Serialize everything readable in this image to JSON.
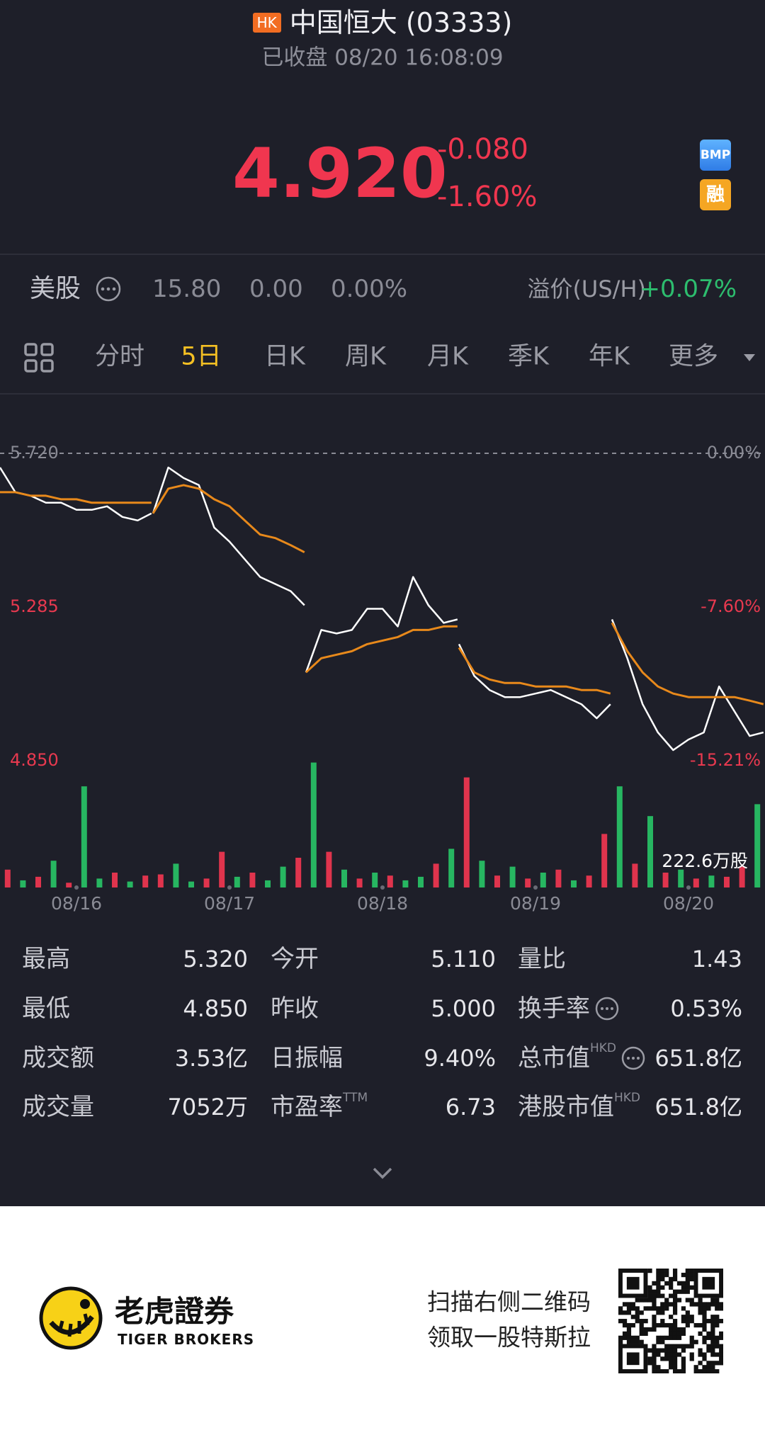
{
  "header": {
    "market_badge": "HK",
    "title": "中国恒大 (03333)",
    "status": "已收盘 08/20 16:08:09"
  },
  "quote": {
    "price": "4.920",
    "change": "-0.080",
    "change_pct": "-1.60%",
    "badges": [
      "BMP",
      "融"
    ]
  },
  "us_row": {
    "label": "美股",
    "price": "15.80",
    "change": "0.00",
    "change_pct": "0.00%",
    "premium_label": "溢价(US/H)",
    "premium": "+0.07%"
  },
  "tabs": {
    "items": [
      "分时",
      "5日",
      "日K",
      "周K",
      "月K",
      "季K",
      "年K",
      "更多"
    ],
    "active": 1
  },
  "chart_data": {
    "type": "line",
    "x": [
      0,
      0.1,
      0.2,
      0.3,
      0.4,
      0.5,
      0.6,
      0.7,
      0.8,
      0.9,
      0.99,
      0.995,
      1,
      1.1,
      1.2,
      1.3,
      1.4,
      1.5,
      1.6,
      1.7,
      1.8,
      1.9,
      1.99,
      1.995,
      2,
      2.1,
      2.2,
      2.3,
      2.4,
      2.5,
      2.6,
      2.7,
      2.8,
      2.9,
      2.99,
      2.995,
      3,
      3.1,
      3.2,
      3.3,
      3.4,
      3.5,
      3.6,
      3.7,
      3.8,
      3.9,
      3.99,
      3.995,
      4,
      4.1,
      4.2,
      4.3,
      4.4,
      4.5,
      4.6,
      4.7,
      4.8,
      4.9,
      4.99
    ],
    "series": [
      {
        "color": "#ffffff",
        "values": [
          5.68,
          5.61,
          5.6,
          5.58,
          5.58,
          5.56,
          5.56,
          5.57,
          5.54,
          5.53,
          5.55,
          null,
          5.55,
          5.68,
          5.65,
          5.63,
          5.51,
          5.47,
          5.42,
          5.37,
          5.35,
          5.33,
          5.29,
          null,
          5.1,
          5.22,
          5.21,
          5.22,
          5.28,
          5.28,
          5.23,
          5.37,
          5.29,
          5.24,
          5.25,
          null,
          5.18,
          5.09,
          5.05,
          5.03,
          5.03,
          5.04,
          5.05,
          5.03,
          5.01,
          4.97,
          5.01,
          null,
          5.25,
          5.14,
          5.01,
          4.93,
          4.88,
          4.91,
          4.93,
          5.06,
          4.99,
          4.92,
          4.93
        ]
      },
      {
        "color": "#e8891b",
        "values": [
          5.61,
          5.61,
          5.6,
          5.6,
          5.59,
          5.59,
          5.58,
          5.58,
          5.58,
          5.58,
          5.58,
          null,
          5.55,
          5.62,
          5.63,
          5.62,
          5.59,
          5.57,
          5.53,
          5.49,
          5.48,
          5.46,
          5.44,
          null,
          5.1,
          5.14,
          5.15,
          5.16,
          5.18,
          5.19,
          5.2,
          5.22,
          5.22,
          5.23,
          5.23,
          null,
          5.17,
          5.1,
          5.08,
          5.07,
          5.07,
          5.06,
          5.06,
          5.06,
          5.05,
          5.05,
          5.04,
          null,
          5.24,
          5.16,
          5.1,
          5.06,
          5.04,
          5.03,
          5.03,
          5.03,
          5.03,
          5.02,
          5.01
        ]
      }
    ],
    "ylim": [
      4.85,
      5.72
    ],
    "yticks": [
      {
        "value": 5.72,
        "label": "5.720"
      },
      {
        "value": 5.285,
        "label": "5.285"
      },
      {
        "value": 4.85,
        "label": "4.850"
      }
    ],
    "y2lim": [
      -15.21,
      0
    ],
    "y2ticks": [
      {
        "value": 0,
        "label": "0.00%"
      },
      {
        "value": -7.6,
        "label": "-7.60%"
      },
      {
        "value": -15.21,
        "label": "-15.21%"
      }
    ],
    "categories": [
      "08/16",
      "08/17",
      "08/18",
      "08/19",
      "08/20"
    ],
    "volume_max": {
      "value": 222.6,
      "label": "222.6万股"
    },
    "volume": {
      "values": [
        30,
        12,
        18,
        45,
        8,
        170,
        15,
        25,
        10,
        20,
        22,
        40,
        10,
        15,
        60,
        18,
        25,
        12,
        35,
        50,
        210,
        60,
        30,
        15,
        25,
        20,
        12,
        18,
        40,
        65,
        185,
        45,
        20,
        35,
        15,
        25,
        30,
        12,
        20,
        90,
        170,
        40,
        120,
        25,
        30,
        15,
        20,
        18,
        35,
        140
      ],
      "colors": [
        "#e0344d",
        "#27b661",
        "#e0344d",
        "#27b661",
        "#e0344d",
        "#27b661",
        "#27b661",
        "#e0344d",
        "#27b661",
        "#e0344d",
        "#e0344d",
        "#27b661",
        "#27b661",
        "#e0344d",
        "#e0344d",
        "#27b661",
        "#e0344d",
        "#27b661",
        "#27b661",
        "#e0344d",
        "#27b661",
        "#e0344d",
        "#27b661",
        "#e0344d",
        "#27b661",
        "#e0344d",
        "#27b661",
        "#27b661",
        "#e0344d",
        "#27b661",
        "#e0344d",
        "#27b661",
        "#e0344d",
        "#27b661",
        "#e0344d",
        "#27b661",
        "#e0344d",
        "#27b661",
        "#e0344d",
        "#e0344d",
        "#27b661",
        "#e0344d",
        "#27b661",
        "#e0344d",
        "#27b661",
        "#e0344d",
        "#27b661",
        "#e0344d",
        "#e0344d",
        "#27b661"
      ]
    }
  },
  "stats": {
    "rows": [
      [
        {
          "label": "最高",
          "value": "5.320"
        },
        {
          "label": "今开",
          "value": "5.110"
        },
        {
          "label": "量比",
          "value": "1.43"
        }
      ],
      [
        {
          "label": "最低",
          "value": "4.850"
        },
        {
          "label": "昨收",
          "value": "5.000"
        },
        {
          "label": "换手率",
          "value": "0.53%",
          "info": true
        }
      ],
      [
        {
          "label": "成交额",
          "value": "3.53亿"
        },
        {
          "label": "日振幅",
          "value": "9.40%"
        },
        {
          "label": "总市值",
          "sup": "HKD",
          "value": "651.8亿",
          "info": true
        }
      ],
      [
        {
          "label": "成交量",
          "value": "7052万"
        },
        {
          "label": "市盈率",
          "sup": "TTM",
          "value": "6.73"
        },
        {
          "label": "港股市值",
          "sup": "HKD",
          "value": "651.8亿"
        }
      ]
    ]
  },
  "footer": {
    "brand": "老虎證券",
    "brand_en": "TIGER BROKERS",
    "promo": [
      "扫描右侧二维码",
      "领取一股特斯拉"
    ]
  }
}
